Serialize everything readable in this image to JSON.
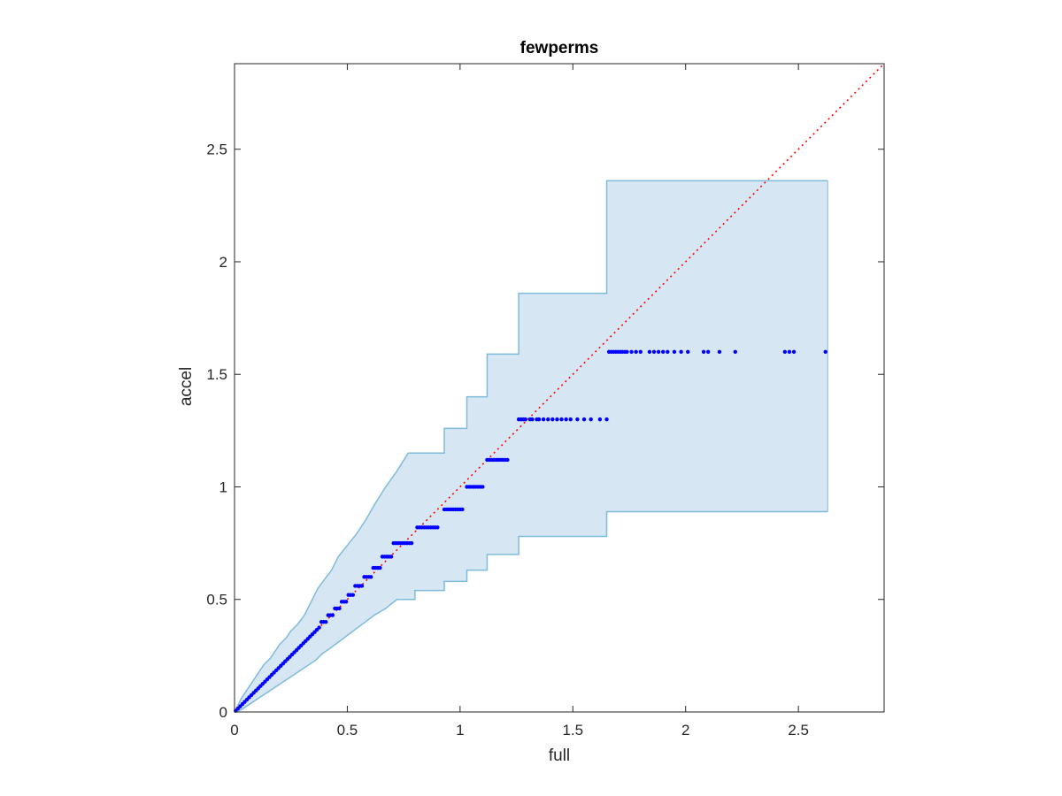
{
  "chart_data": {
    "type": "scatter",
    "title": "fewperms",
    "xlabel": "full",
    "ylabel": "accel",
    "xlim": [
      0,
      2.88
    ],
    "ylim": [
      0,
      2.88
    ],
    "xticks": [
      0,
      0.5,
      1,
      1.5,
      2,
      2.5
    ],
    "xtick_labels": [
      "0",
      "0.5",
      "1",
      "1.5",
      "2",
      "2.5"
    ],
    "yticks": [
      0,
      0.5,
      1,
      1.5,
      2,
      2.5
    ],
    "ytick_labels": [
      "0",
      "0.5",
      "1",
      "1.5",
      "2",
      "2.5"
    ],
    "grid": false,
    "colors": {
      "points": "#0000ff",
      "reference_line": "#ff0000",
      "band_fill": "#d6e7f3",
      "band_edge": "#7fbbda",
      "axes": "#262626"
    },
    "reference_line": {
      "style": "dotted",
      "from": [
        0,
        0
      ],
      "to": [
        2.88,
        2.88
      ]
    },
    "band": {
      "upper": [
        [
          0,
          0
        ],
        [
          0.01,
          0.02
        ],
        [
          0.02,
          0.04
        ],
        [
          0.03,
          0.06
        ],
        [
          0.05,
          0.09
        ],
        [
          0.07,
          0.12
        ],
        [
          0.09,
          0.15
        ],
        [
          0.11,
          0.18
        ],
        [
          0.13,
          0.21
        ],
        [
          0.16,
          0.24
        ],
        [
          0.18,
          0.27
        ],
        [
          0.2,
          0.3
        ],
        [
          0.23,
          0.33
        ],
        [
          0.25,
          0.36
        ],
        [
          0.28,
          0.39
        ],
        [
          0.31,
          0.43
        ],
        [
          0.33,
          0.47
        ],
        [
          0.35,
          0.51
        ],
        [
          0.37,
          0.55
        ],
        [
          0.4,
          0.59
        ],
        [
          0.43,
          0.63
        ],
        [
          0.46,
          0.69
        ],
        [
          0.5,
          0.74
        ],
        [
          0.54,
          0.79
        ],
        [
          0.58,
          0.85
        ],
        [
          0.62,
          0.92
        ],
        [
          0.67,
          1.0
        ],
        [
          0.72,
          1.07
        ],
        [
          0.77,
          1.15
        ],
        [
          0.93,
          1.15
        ],
        [
          0.93,
          1.26
        ],
        [
          1.03,
          1.26
        ],
        [
          1.03,
          1.4
        ],
        [
          1.12,
          1.4
        ],
        [
          1.12,
          1.59
        ],
        [
          1.26,
          1.59
        ],
        [
          1.26,
          1.86
        ],
        [
          1.65,
          1.86
        ],
        [
          1.65,
          2.36
        ],
        [
          2.63,
          2.36
        ]
      ],
      "lower": [
        [
          0,
          0
        ],
        [
          0.03,
          0.01
        ],
        [
          0.06,
          0.03
        ],
        [
          0.09,
          0.05
        ],
        [
          0.12,
          0.07
        ],
        [
          0.15,
          0.09
        ],
        [
          0.18,
          0.11
        ],
        [
          0.21,
          0.13
        ],
        [
          0.24,
          0.15
        ],
        [
          0.27,
          0.17
        ],
        [
          0.3,
          0.19
        ],
        [
          0.33,
          0.21
        ],
        [
          0.36,
          0.23
        ],
        [
          0.39,
          0.26
        ],
        [
          0.42,
          0.28
        ],
        [
          0.46,
          0.31
        ],
        [
          0.5,
          0.34
        ],
        [
          0.54,
          0.37
        ],
        [
          0.58,
          0.4
        ],
        [
          0.62,
          0.43
        ],
        [
          0.67,
          0.46
        ],
        [
          0.72,
          0.5
        ],
        [
          0.8,
          0.5
        ],
        [
          0.8,
          0.54
        ],
        [
          0.93,
          0.54
        ],
        [
          0.93,
          0.58
        ],
        [
          1.03,
          0.58
        ],
        [
          1.03,
          0.63
        ],
        [
          1.12,
          0.63
        ],
        [
          1.12,
          0.7
        ],
        [
          1.26,
          0.7
        ],
        [
          1.26,
          0.78
        ],
        [
          1.65,
          0.78
        ],
        [
          1.65,
          0.89
        ],
        [
          2.63,
          0.89
        ]
      ]
    },
    "series": [
      {
        "x": [
          0.005,
          0.015,
          0.025,
          0.035,
          0.045,
          0.055,
          0.065,
          0.075,
          0.085,
          0.095,
          0.105,
          0.115,
          0.125,
          0.135,
          0.145,
          0.155,
          0.165,
          0.175,
          0.185,
          0.195,
          0.205,
          0.215,
          0.225,
          0.235,
          0.245,
          0.255,
          0.265,
          0.275,
          0.285,
          0.295,
          0.305,
          0.315,
          0.325,
          0.335,
          0.345,
          0.355,
          0.365,
          0.375,
          0.385,
          0.395,
          0.405,
          0.415,
          0.425,
          0.435,
          0.445,
          0.455,
          0.465,
          0.475,
          0.485,
          0.495,
          0.505,
          0.515,
          0.525,
          0.535,
          0.545,
          0.555,
          0.565,
          0.575,
          0.585,
          0.595,
          0.605,
          0.615,
          0.625,
          0.635,
          0.645,
          0.655,
          0.665,
          0.675,
          0.685,
          0.695,
          0.705,
          0.715,
          0.725,
          0.735,
          0.745,
          0.755,
          0.765,
          0.775,
          0.785,
          0.81,
          0.82,
          0.83,
          0.84,
          0.85,
          0.86,
          0.87,
          0.88,
          0.89,
          0.9,
          0.93,
          0.94,
          0.95,
          0.96,
          0.97,
          0.98,
          0.99,
          1.0,
          1.01,
          1.03,
          1.04,
          1.05,
          1.06,
          1.07,
          1.08,
          1.09,
          1.1,
          1.12,
          1.13,
          1.14,
          1.15,
          1.16,
          1.17,
          1.18,
          1.19,
          1.2,
          1.21,
          1.26,
          1.27,
          1.28,
          1.29,
          1.31,
          1.32,
          1.34,
          1.35,
          1.37,
          1.39,
          1.41,
          1.43,
          1.45,
          1.47,
          1.49,
          1.52,
          1.55,
          1.58,
          1.62,
          1.65,
          1.66,
          1.67,
          1.68,
          1.69,
          1.7,
          1.71,
          1.72,
          1.73,
          1.74,
          1.76,
          1.78,
          1.8,
          1.84,
          1.86,
          1.88,
          1.9,
          1.92,
          1.95,
          1.98,
          2.01,
          2.08,
          2.1,
          2.15,
          2.22,
          2.44,
          2.46,
          2.48,
          2.62
        ],
        "y": [
          0.005,
          0.015,
          0.025,
          0.035,
          0.045,
          0.055,
          0.065,
          0.075,
          0.085,
          0.095,
          0.105,
          0.115,
          0.125,
          0.135,
          0.145,
          0.155,
          0.165,
          0.175,
          0.185,
          0.195,
          0.205,
          0.215,
          0.225,
          0.235,
          0.245,
          0.255,
          0.265,
          0.275,
          0.285,
          0.295,
          0.305,
          0.315,
          0.325,
          0.335,
          0.345,
          0.355,
          0.365,
          0.375,
          0.4,
          0.4,
          0.4,
          0.43,
          0.43,
          0.43,
          0.46,
          0.46,
          0.46,
          0.49,
          0.49,
          0.49,
          0.52,
          0.52,
          0.52,
          0.56,
          0.56,
          0.56,
          0.56,
          0.6,
          0.6,
          0.6,
          0.6,
          0.64,
          0.64,
          0.64,
          0.64,
          0.69,
          0.69,
          0.69,
          0.69,
          0.69,
          0.75,
          0.75,
          0.75,
          0.75,
          0.75,
          0.75,
          0.75,
          0.75,
          0.75,
          0.82,
          0.82,
          0.82,
          0.82,
          0.82,
          0.82,
          0.82,
          0.82,
          0.82,
          0.82,
          0.9,
          0.9,
          0.9,
          0.9,
          0.9,
          0.9,
          0.9,
          0.9,
          0.9,
          1.0,
          1.0,
          1.0,
          1.0,
          1.0,
          1.0,
          1.0,
          1.0,
          1.12,
          1.12,
          1.12,
          1.12,
          1.12,
          1.12,
          1.12,
          1.12,
          1.12,
          1.12,
          1.3,
          1.3,
          1.3,
          1.3,
          1.3,
          1.3,
          1.3,
          1.3,
          1.3,
          1.3,
          1.3,
          1.3,
          1.3,
          1.3,
          1.3,
          1.3,
          1.3,
          1.3,
          1.3,
          1.3,
          1.6,
          1.6,
          1.6,
          1.6,
          1.6,
          1.6,
          1.6,
          1.6,
          1.6,
          1.6,
          1.6,
          1.6,
          1.6,
          1.6,
          1.6,
          1.6,
          1.6,
          1.6,
          1.6,
          1.6,
          1.6,
          1.6,
          1.6,
          1.6,
          1.6,
          1.6,
          1.6,
          1.6
        ]
      }
    ]
  }
}
